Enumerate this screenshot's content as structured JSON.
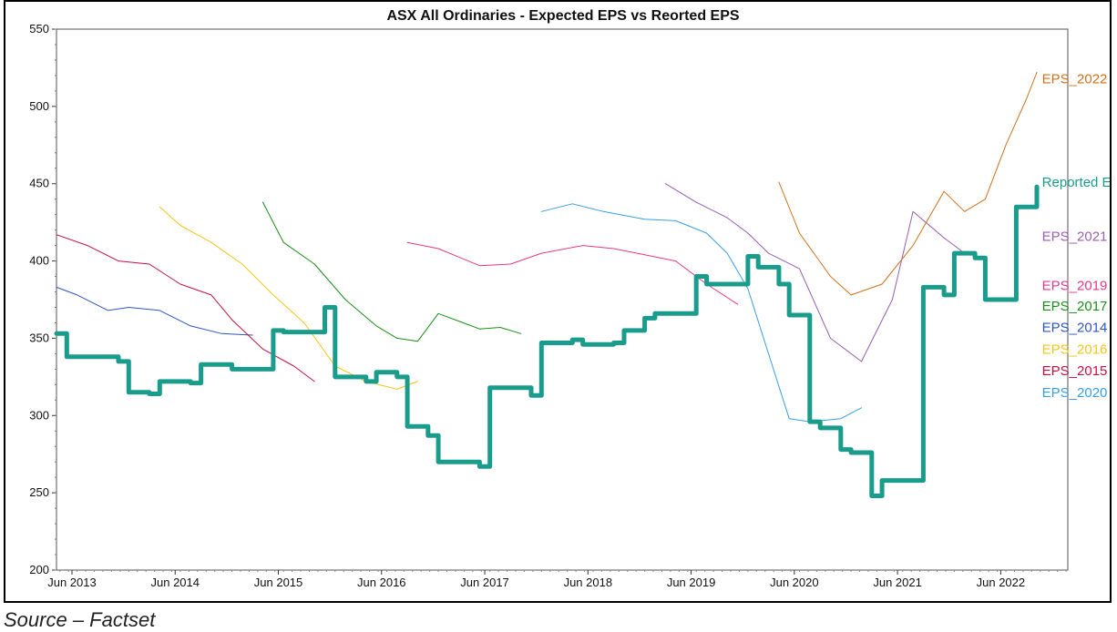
{
  "source_note": "Source – Factset",
  "chart_data": {
    "type": "line",
    "title": "ASX All Ordinaries - Expected EPS vs Reorted EPS",
    "xlabel": "",
    "ylabel": "",
    "ylim": [
      200,
      550
    ],
    "yticks": [
      200,
      250,
      300,
      350,
      400,
      450,
      500,
      550
    ],
    "xlim": [
      2013.3,
      2023.1
    ],
    "xticks": [
      {
        "label": "Jun 2013",
        "x": 2013.45
      },
      {
        "label": "Jun 2014",
        "x": 2014.45
      },
      {
        "label": "Jun 2015",
        "x": 2015.45
      },
      {
        "label": "Jun 2016",
        "x": 2016.45
      },
      {
        "label": "Jun 2017",
        "x": 2017.45
      },
      {
        "label": "Jun 2018",
        "x": 2018.45
      },
      {
        "label": "Jun 2019",
        "x": 2019.45
      },
      {
        "label": "Jun 2020",
        "x": 2020.45
      },
      {
        "label": "Jun 2021",
        "x": 2021.45
      },
      {
        "label": "Jun 2022",
        "x": 2022.45
      }
    ],
    "grid": false,
    "legend": "right, labels beside series",
    "series": [
      {
        "name": "EPS_2014",
        "color": "#2e55c4",
        "width": 1,
        "x": [
          2013.3,
          2013.5,
          2013.8,
          2014.0,
          2014.3,
          2014.6,
          2014.9,
          2015.2
        ],
        "y": [
          383,
          378,
          368,
          370,
          368,
          358,
          353,
          352
        ]
      },
      {
        "name": "EPS_2015",
        "color": "#c8103e",
        "width": 1,
        "x": [
          2013.3,
          2013.6,
          2013.9,
          2014.2,
          2014.5,
          2014.8,
          2015.0,
          2015.3,
          2015.6,
          2015.8
        ],
        "y": [
          417,
          410,
          400,
          398,
          385,
          378,
          362,
          343,
          332,
          322
        ]
      },
      {
        "name": "EPS_2016",
        "color": "#f5c518",
        "width": 1,
        "x": [
          2014.3,
          2014.5,
          2014.8,
          2015.1,
          2015.4,
          2015.7,
          2016.0,
          2016.3,
          2016.6,
          2016.8
        ],
        "y": [
          435,
          423,
          412,
          398,
          378,
          360,
          332,
          322,
          317,
          322
        ]
      },
      {
        "name": "EPS_2017",
        "color": "#1a8f1a",
        "width": 1,
        "x": [
          2015.3,
          2015.5,
          2015.8,
          2016.1,
          2016.4,
          2016.6,
          2016.8,
          2017.0,
          2017.4,
          2017.6,
          2017.8
        ],
        "y": [
          438,
          412,
          398,
          375,
          358,
          350,
          348,
          366,
          356,
          357,
          353
        ]
      },
      {
        "name": "EPS_2019",
        "color": "#e8388a",
        "width": 1,
        "x": [
          2016.7,
          2017.0,
          2017.4,
          2017.7,
          2018.0,
          2018.4,
          2018.7,
          2019.0,
          2019.3,
          2019.6,
          2019.9
        ],
        "y": [
          412,
          408,
          397,
          398,
          405,
          410,
          408,
          404,
          400,
          385,
          372
        ]
      },
      {
        "name": "EPS_2020",
        "color": "#3a9ee8",
        "width": 1,
        "x": [
          2018.0,
          2018.3,
          2018.6,
          2019.0,
          2019.3,
          2019.6,
          2019.8,
          2020.0,
          2020.2,
          2020.4,
          2020.6,
          2020.9,
          2021.1
        ],
        "y": [
          432,
          437,
          432,
          427,
          426,
          418,
          405,
          382,
          340,
          298,
          296,
          298,
          305
        ]
      },
      {
        "name": "EPS_2021",
        "color": "#9a5fb0",
        "width": 1,
        "x": [
          2019.2,
          2019.5,
          2019.8,
          2020.0,
          2020.2,
          2020.5,
          2020.8,
          2021.1,
          2021.4,
          2021.6,
          2021.9,
          2022.1
        ],
        "y": [
          450,
          438,
          428,
          418,
          405,
          395,
          350,
          335,
          375,
          432,
          415,
          405
        ]
      },
      {
        "name": "EPS_2022",
        "color": "#d2721c",
        "width": 1,
        "x": [
          2020.3,
          2020.5,
          2020.8,
          2021.0,
          2021.3,
          2021.6,
          2021.9,
          2022.1,
          2022.3,
          2022.5,
          2022.7,
          2022.8
        ],
        "y": [
          451,
          418,
          390,
          378,
          385,
          410,
          445,
          432,
          440,
          475,
          505,
          522
        ]
      },
      {
        "name": "Reported EPS",
        "color": "#1a9c8c",
        "width": 5,
        "x": [
          2013.3,
          2013.4,
          2013.9,
          2014.0,
          2014.2,
          2014.3,
          2014.6,
          2014.7,
          2015.0,
          2015.1,
          2015.4,
          2015.5,
          2015.9,
          2016.0,
          2016.3,
          2016.4,
          2016.6,
          2016.7,
          2016.9,
          2017.0,
          2017.4,
          2017.5,
          2017.9,
          2018.0,
          2018.3,
          2018.4,
          2018.7,
          2018.8,
          2019.0,
          2019.1,
          2019.5,
          2019.6,
          2020.0,
          2020.1,
          2020.3,
          2020.4,
          2020.6,
          2020.7,
          2020.9,
          2021.0,
          2021.2,
          2021.3,
          2021.6,
          2021.7,
          2021.9,
          2022.0,
          2022.2,
          2022.3,
          2022.6,
          2022.8
        ],
        "y": [
          353,
          338,
          335,
          315,
          314,
          322,
          321,
          333,
          330,
          330,
          355,
          354,
          370,
          325,
          322,
          328,
          325,
          293,
          287,
          270,
          267,
          318,
          313,
          347,
          349,
          346,
          347,
          355,
          363,
          366,
          390,
          385,
          403,
          396,
          385,
          365,
          296,
          292,
          278,
          276,
          248,
          258,
          258,
          383,
          378,
          405,
          402,
          375,
          435,
          448
        ]
      }
    ],
    "label_positions": [
      {
        "name": "EPS_2022",
        "color": "#d2721c",
        "y": 518
      },
      {
        "name": "Reported EPS",
        "color": "#1a9c8c",
        "y": 451
      },
      {
        "name": "EPS_2021",
        "color": "#9a5fb0",
        "y": 416
      },
      {
        "name": "EPS_2019",
        "color": "#e8388a",
        "y": 384
      },
      {
        "name": "EPS_2017",
        "color": "#1a8f1a",
        "y": 371
      },
      {
        "name": "EPS_2014",
        "color": "#2e55c4",
        "y": 357
      },
      {
        "name": "EPS_2016",
        "color": "#f5c518",
        "y": 343
      },
      {
        "name": "EPS_2015",
        "color": "#c8103e",
        "y": 329
      },
      {
        "name": "EPS_2020",
        "color": "#3a9ee8",
        "y": 315
      }
    ]
  }
}
